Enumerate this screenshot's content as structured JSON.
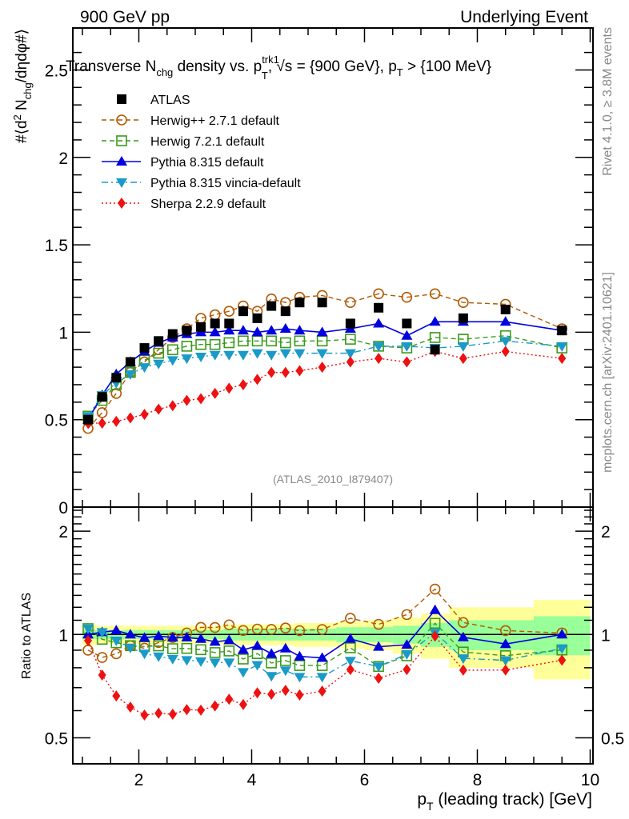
{
  "header": {
    "left": "900 GeV pp",
    "right": "Underlying Event"
  },
  "side_text": {
    "rivet": "Rivet 4.1.0, ≥ 3.8M events",
    "mcplots": "mcplots.cern.ch [arXiv:2401.10621]"
  },
  "watermark": "(ATLAS_2010_I879407)",
  "chart_data": [
    {
      "type": "scatter",
      "panel": "main",
      "title": "Transverse N_chg density vs. p_T^trk1, √s = {900 GeV}, p_T > {100 MeV}",
      "title_parts": {
        "a": "Transverse N",
        "a_sub": "chg",
        "b": " density vs. p",
        "b_sup": "trk1",
        "b_sub": "T",
        "c": ", √s = {900 GeV}, p",
        "c_sub": "T",
        "d": " > {100 MeV}"
      },
      "ylabel": "#⟨d² N_chg/dηdφ#⟩",
      "ylabel_parts": {
        "a": "#⟨d",
        "a_sup": "2",
        "b": " N",
        "b_sub": "chg",
        "c": "/dηdφ#⟩"
      },
      "xlim": [
        0.83,
        10.05
      ],
      "ylim": [
        0,
        2.74
      ],
      "yticks": [
        "0",
        "0.5",
        "1",
        "1.5",
        "2",
        "2.5"
      ],
      "yticks_values": [
        0,
        0.5,
        1,
        1.5,
        2,
        2.5
      ],
      "legend_position": "top-left",
      "x": [
        1.1,
        1.35,
        1.6,
        1.85,
        2.1,
        2.35,
        2.6,
        2.85,
        3.1,
        3.35,
        3.6,
        3.85,
        4.1,
        4.35,
        4.6,
        4.85,
        5.25,
        5.75,
        6.25,
        6.75,
        7.25,
        7.75,
        8.5,
        9.5
      ],
      "series": [
        {
          "name": "ATLAS",
          "color": "#000000",
          "marker": "square-filled",
          "line": "none",
          "values": [
            0.5,
            0.63,
            0.74,
            0.83,
            0.91,
            0.95,
            0.99,
            1.01,
            1.03,
            1.05,
            1.05,
            1.12,
            1.08,
            1.15,
            1.12,
            1.17,
            1.17,
            1.05,
            1.14,
            1.05,
            0.9,
            1.08,
            1.13,
            1.01
          ],
          "rel_err_stat": [
            0.03,
            0.03,
            0.03,
            0.03,
            0.03,
            0.03,
            0.03,
            0.03,
            0.03,
            0.03,
            0.04,
            0.04,
            0.04,
            0.04,
            0.04,
            0.04,
            0.04,
            0.05,
            0.05,
            0.06,
            0.08,
            0.1,
            0.1,
            0.13
          ],
          "rel_err_total": [
            0.07,
            0.06,
            0.06,
            0.06,
            0.06,
            0.06,
            0.06,
            0.06,
            0.06,
            0.06,
            0.07,
            0.07,
            0.07,
            0.07,
            0.07,
            0.08,
            0.08,
            0.09,
            0.1,
            0.12,
            0.15,
            0.2,
            0.2,
            0.26
          ]
        },
        {
          "name": "Herwig++ 2.7.1 default",
          "color": "#b35900",
          "marker": "circle-open",
          "line": "dashed",
          "values": [
            0.45,
            0.54,
            0.65,
            0.77,
            0.83,
            0.9,
            0.97,
            1.02,
            1.08,
            1.1,
            1.12,
            1.15,
            1.12,
            1.19,
            1.17,
            1.2,
            1.21,
            1.17,
            1.22,
            1.2,
            1.22,
            1.17,
            1.16,
            1.02
          ]
        },
        {
          "name": "Herwig 7.2.1 default",
          "color": "#3a9a1a",
          "marker": "square-open",
          "line": "dashed",
          "values": [
            0.52,
            0.61,
            0.7,
            0.77,
            0.84,
            0.88,
            0.9,
            0.92,
            0.93,
            0.93,
            0.94,
            0.95,
            0.95,
            0.95,
            0.94,
            0.95,
            0.95,
            0.96,
            0.92,
            0.91,
            0.97,
            0.96,
            0.98,
            0.91
          ]
        },
        {
          "name": "Pythia 8.315 default",
          "color": "#0000dd",
          "marker": "triangle-up-filled",
          "line": "solid",
          "values": [
            0.5,
            0.64,
            0.76,
            0.83,
            0.89,
            0.94,
            0.97,
            0.99,
            1.0,
            1.0,
            1.01,
            1.01,
            1.0,
            1.01,
            1.02,
            1.01,
            1.0,
            1.02,
            1.05,
            0.98,
            1.06,
            1.06,
            1.06,
            1.01
          ]
        },
        {
          "name": "Pythia 8.315 vincia-default",
          "color": "#1a9ac8",
          "marker": "triangle-down-filled",
          "line": "dashdot",
          "values": [
            0.52,
            0.64,
            0.71,
            0.76,
            0.8,
            0.82,
            0.84,
            0.85,
            0.86,
            0.87,
            0.87,
            0.87,
            0.88,
            0.87,
            0.88,
            0.88,
            0.88,
            0.88,
            0.92,
            0.92,
            0.91,
            0.92,
            0.95,
            0.92
          ]
        },
        {
          "name": "Sherpa 2.2.9 default",
          "color": "#ee1111",
          "marker": "diamond-filled",
          "line": "dotted",
          "values": [
            0.48,
            0.48,
            0.49,
            0.51,
            0.53,
            0.56,
            0.58,
            0.61,
            0.62,
            0.65,
            0.68,
            0.7,
            0.73,
            0.77,
            0.77,
            0.78,
            0.8,
            0.83,
            0.85,
            0.83,
            0.89,
            0.85,
            0.89,
            0.85
          ]
        }
      ]
    },
    {
      "type": "scatter",
      "panel": "ratio",
      "ylabel": "Ratio to ATLAS",
      "xlabel": "p_T (leading track) [GeV]",
      "xlabel_parts": {
        "a": "p",
        "a_sub": "T",
        "b": " (leading track) [GeV]"
      },
      "yscale": "log",
      "ylim": [
        0.42,
        2.35
      ],
      "yticks": [
        "0.5",
        "1",
        "2"
      ],
      "yticks_values": [
        0.5,
        1,
        2
      ],
      "xticks": [
        "2",
        "4",
        "6",
        "8",
        "10"
      ],
      "xticks_values": [
        2,
        4,
        6,
        8,
        10
      ],
      "bins": [
        [
          1.0,
          1.25
        ],
        [
          1.25,
          1.5
        ],
        [
          1.5,
          1.75
        ],
        [
          1.75,
          2.0
        ],
        [
          2.0,
          2.25
        ],
        [
          2.25,
          2.5
        ],
        [
          2.5,
          2.75
        ],
        [
          2.75,
          3.0
        ],
        [
          3.0,
          3.25
        ],
        [
          3.25,
          3.5
        ],
        [
          3.5,
          3.75
        ],
        [
          3.75,
          4.0
        ],
        [
          4.0,
          4.25
        ],
        [
          4.25,
          4.5
        ],
        [
          4.5,
          4.75
        ],
        [
          4.75,
          5.0
        ],
        [
          5.0,
          5.5
        ],
        [
          5.5,
          6.0
        ],
        [
          6.0,
          6.5
        ],
        [
          6.5,
          7.0
        ],
        [
          7.0,
          7.5
        ],
        [
          7.5,
          8.0
        ],
        [
          8.0,
          9.0
        ],
        [
          9.0,
          10.0
        ]
      ],
      "band_colors": {
        "stat": "#99ff99",
        "total": "#ffff99"
      },
      "reference_line": 1,
      "note": "ratio values = model / ATLAS per x point"
    }
  ]
}
